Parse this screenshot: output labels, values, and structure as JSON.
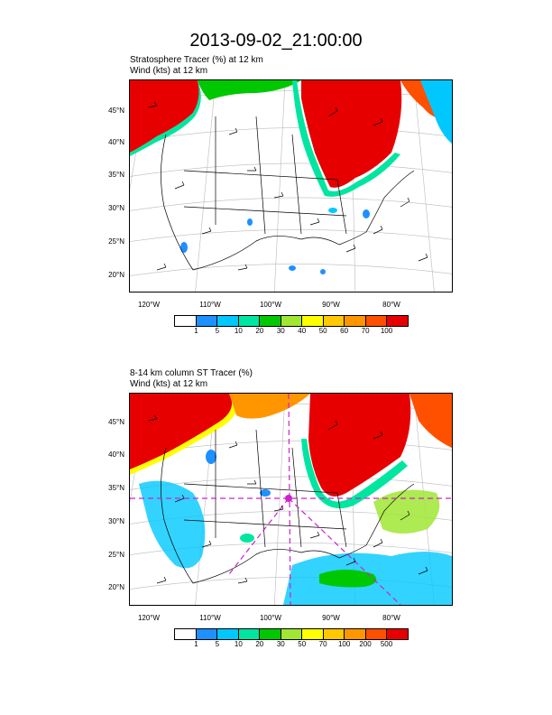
{
  "title": "2013-09-02_21:00:00",
  "panels": [
    {
      "heading_line1": "Stratosphere Tracer   (%)    at   12 km",
      "heading_line2": "Wind   (kts)    at   12 km",
      "lat_labels": [
        "45°N",
        "40°N",
        "35°N",
        "30°N",
        "25°N",
        "20°N"
      ],
      "lon_labels": [
        "120°W",
        "110°W",
        "100°W",
        "90°W",
        "80°W"
      ],
      "colorbar_labels": [
        "1",
        "5",
        "10",
        "20",
        "30",
        "40",
        "50",
        "60",
        "70",
        "100"
      ]
    },
    {
      "heading_line1": "8-14 km column ST Tracer   (%)",
      "heading_line2": "Wind   (kts)    at   12 km",
      "lat_labels": [
        "45°N",
        "40°N",
        "35°N",
        "30°N",
        "25°N",
        "20°N"
      ],
      "lon_labels": [
        "120°W",
        "110°W",
        "100°W",
        "90°W",
        "80°W"
      ],
      "colorbar_labels": [
        "1",
        "5",
        "10",
        "20",
        "30",
        "50",
        "70",
        "100",
        "200",
        "500"
      ]
    }
  ],
  "colorbar_colors": [
    "#ffffff",
    "#1e90ff",
    "#00c8ff",
    "#00e6a0",
    "#00c800",
    "#a0e632",
    "#ffff00",
    "#ffc800",
    "#ff9600",
    "#ff5000",
    "#e60000"
  ],
  "overlay_color": "#cc22cc"
}
